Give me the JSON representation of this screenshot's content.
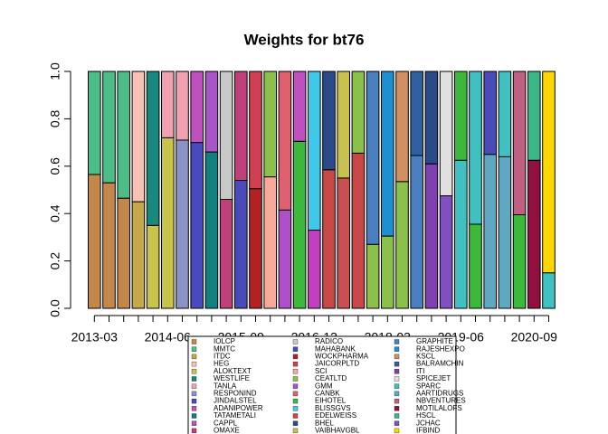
{
  "chart_data": {
    "type": "stacked-bar",
    "title": "Weights for bt76",
    "categories": [
      "2013-03",
      null,
      null,
      null,
      null,
      "2014-06",
      null,
      null,
      null,
      null,
      "2015-09",
      null,
      null,
      null,
      null,
      "2016-12",
      null,
      null,
      null,
      null,
      "2018-03",
      null,
      null,
      null,
      null,
      "2019-06",
      null,
      null,
      null,
      null,
      "2020-09",
      null
    ],
    "bars": [
      {
        "values": [
          0.565,
          0.435
        ],
        "colors": [
          "#c4874a",
          "#4dbd88"
        ]
      },
      {
        "values": [
          0.53,
          0.47
        ],
        "colors": [
          "#c4874a",
          "#4dbd88"
        ]
      },
      {
        "values": [
          0.465,
          0.535
        ],
        "colors": [
          "#c4874a",
          "#4dbd88"
        ]
      },
      {
        "values": [
          0.45,
          0.55
        ],
        "colors": [
          "#c4a84a",
          "#f7c2b4"
        ]
      },
      {
        "values": [
          0.35,
          0.65
        ],
        "colors": [
          "#c8c34a",
          "#17897e"
        ]
      },
      {
        "values": [
          0.72,
          0.28
        ],
        "colors": [
          "#c8c34a",
          "#f0a0b0"
        ]
      },
      {
        "values": [
          0.71,
          0.29
        ],
        "colors": [
          "#8a93c4",
          "#f0a0b0"
        ]
      },
      {
        "values": [
          0.7,
          0.3
        ],
        "colors": [
          "#4a4abf",
          "#c050c0"
        ]
      },
      {
        "values": [
          0.66,
          0.34
        ],
        "colors": [
          "#138080",
          "#a855c8"
        ]
      },
      {
        "values": [
          0.46,
          0.54
        ],
        "colors": [
          "#c0407a",
          "#c8c8c8"
        ]
      },
      {
        "values": [
          0.54,
          0.46
        ],
        "colors": [
          "#4a4ab8",
          "#c0407a"
        ]
      },
      {
        "values": [
          0.505,
          0.495
        ],
        "colors": [
          "#b22222",
          "#d04050"
        ]
      },
      {
        "values": [
          0.555,
          0.445
        ],
        "colors": [
          "#f7a898",
          "#8bc04a"
        ]
      },
      {
        "values": [
          0.415,
          0.585
        ],
        "colors": [
          "#b050c8",
          "#e06070"
        ]
      },
      {
        "values": [
          0.705,
          0.295
        ],
        "colors": [
          "#3cb83c",
          "#c050c0"
        ]
      },
      {
        "values": [
          0.33,
          0.67
        ],
        "colors": [
          "#c040c0",
          "#40c8e8"
        ]
      },
      {
        "values": [
          0.585,
          0.415
        ],
        "colors": [
          "#c84848",
          "#2a4a8a"
        ]
      },
      {
        "values": [
          0.55,
          0.45
        ],
        "colors": [
          "#c85050",
          "#c8c050"
        ]
      },
      {
        "values": [
          0.655,
          0.345
        ],
        "colors": [
          "#c84848",
          "#8bc04a"
        ]
      },
      {
        "values": [
          0.27,
          0.73
        ],
        "colors": [
          "#8bc04a",
          "#4a80c0"
        ]
      },
      {
        "values": [
          0.305,
          0.695
        ],
        "colors": [
          "#8bc04a",
          "#1e90d0"
        ]
      },
      {
        "values": [
          0.535,
          0.465
        ],
        "colors": [
          "#8bc04a",
          "#d09060"
        ]
      },
      {
        "values": [
          0.645,
          0.355
        ],
        "colors": [
          "#4a80c0",
          "#3060a0"
        ]
      },
      {
        "values": [
          0.61,
          0.39
        ],
        "colors": [
          "#8040b0",
          "#2a4a8a"
        ]
      },
      {
        "values": [
          0.475,
          0.525
        ],
        "colors": [
          "#8050c0",
          "#e0e0e0"
        ]
      },
      {
        "values": [
          0.625,
          0.375
        ],
        "colors": [
          "#40c0c0",
          "#3cb83c"
        ]
      },
      {
        "values": [
          0.355,
          0.645
        ],
        "colors": [
          "#3cb83c",
          "#40c0c0"
        ]
      },
      {
        "values": [
          0.65,
          0.35
        ],
        "colors": [
          "#60a8c0",
          "#4a4ab8"
        ]
      },
      {
        "values": [
          0.64,
          0.36
        ],
        "colors": [
          "#60a8c0",
          "#40c0c0"
        ]
      },
      {
        "values": [
          0.395,
          0.605
        ],
        "colors": [
          "#3cb83c",
          "#c06080"
        ]
      },
      {
        "values": [
          0.625,
          0.375
        ],
        "colors": [
          "#901040",
          "#3cb888"
        ]
      },
      {
        "values": [
          0.15,
          0.85
        ],
        "colors": [
          "#40c0c0",
          "#ffd700"
        ]
      }
    ],
    "ylim": [
      0,
      1
    ],
    "yticks": [
      0,
      0.2,
      0.4,
      0.6,
      0.8,
      1
    ],
    "ytick_labels": [
      "0.0",
      "0.2",
      "0.4",
      "0.6",
      "0.8",
      "1.0"
    ],
    "legend": [
      {
        "name": "IOLCP",
        "color": "#c4874a"
      },
      {
        "name": "MMTC",
        "color": "#4dbd88"
      },
      {
        "name": "ITDC",
        "color": "#c4a84a"
      },
      {
        "name": "HEG",
        "color": "#f7c2b4"
      },
      {
        "name": "ALOKTEXT",
        "color": "#c8c34a"
      },
      {
        "name": "WESTLIFE",
        "color": "#17897e"
      },
      {
        "name": "TANLA",
        "color": "#f0a0b0"
      },
      {
        "name": "RESPONIND",
        "color": "#8a93c4"
      },
      {
        "name": "JINDALSTEL",
        "color": "#4a4abf"
      },
      {
        "name": "ADANIPOWER",
        "color": "#c050c0"
      },
      {
        "name": "TATAMETALI",
        "color": "#138080"
      },
      {
        "name": "CAPPL",
        "color": "#a855c8"
      },
      {
        "name": "OMAXE",
        "color": "#c0407a"
      },
      {
        "name": "RADICO",
        "color": "#c8c8c8"
      },
      {
        "name": "MAHABANK",
        "color": "#4a4ab8"
      },
      {
        "name": "WOCKPHARMA",
        "color": "#b22222"
      },
      {
        "name": "JAICORPLTD",
        "color": "#d04050"
      },
      {
        "name": "SCI",
        "color": "#f7a898"
      },
      {
        "name": "CEATLTD",
        "color": "#8bc04a"
      },
      {
        "name": "GMM",
        "color": "#b050c8"
      },
      {
        "name": "CANBK",
        "color": "#e06070"
      },
      {
        "name": "EIHOTEL",
        "color": "#3cb83c"
      },
      {
        "name": "BLISSGVS",
        "color": "#40c8e8"
      },
      {
        "name": "EDELWEISS",
        "color": "#c84848"
      },
      {
        "name": "BHEL",
        "color": "#2a4a8a"
      },
      {
        "name": "VAIBHAVGBL",
        "color": "#c8c050"
      },
      {
        "name": "GRAPHITE",
        "color": "#4a80c0"
      },
      {
        "name": "RAJESHEXPO",
        "color": "#1e90d0"
      },
      {
        "name": "KSCL",
        "color": "#d09060"
      },
      {
        "name": "BALRAMCHIN",
        "color": "#3060a0"
      },
      {
        "name": "ITI",
        "color": "#8040b0"
      },
      {
        "name": "SPICEJET",
        "color": "#e0e0e0"
      },
      {
        "name": "SPARC",
        "color": "#40c0c0"
      },
      {
        "name": "AARTIDRUGS",
        "color": "#60a8c0"
      },
      {
        "name": "NBVENTURES",
        "color": "#c06080"
      },
      {
        "name": "MOTILALOFS",
        "color": "#901040"
      },
      {
        "name": "HSCL",
        "color": "#3cb888"
      },
      {
        "name": "JCHAC",
        "color": "#8050c0"
      },
      {
        "name": "IFBIND",
        "color": "#ffd700"
      }
    ]
  }
}
